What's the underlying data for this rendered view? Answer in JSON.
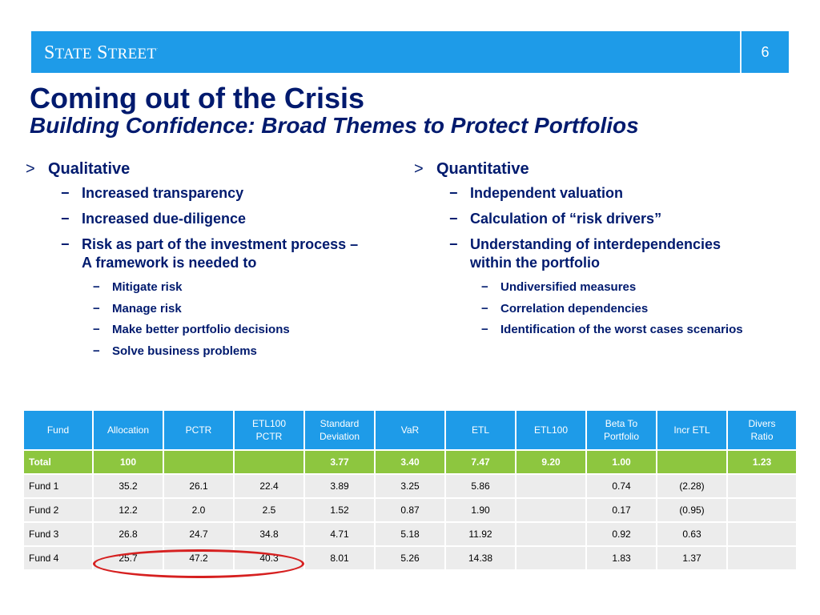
{
  "header": {
    "logo_first": "S",
    "logo_first_rest": "TATE",
    "logo_second": "S",
    "logo_second_rest": "TREET",
    "logo_mark": ".",
    "page_number": "6",
    "accent": "#1e9be8"
  },
  "title": "Coming out of the Crisis",
  "subtitle": "Building Confidence:  Broad Themes to Protect Portfolios",
  "bullet_marker": ">",
  "dash_marker": "−",
  "left": {
    "heading": "Qualitative",
    "items": [
      "Increased transparency",
      "Increased due-diligence",
      "Risk as part of the investment process –",
      "A framework is needed to"
    ],
    "subitems": [
      "Mitigate risk",
      "Manage risk",
      "Make better portfolio decisions",
      "Solve business problems"
    ]
  },
  "right": {
    "heading": "Quantitative",
    "items": [
      "Independent valuation",
      "Calculation of “risk drivers”",
      "Understanding of  interdependencies",
      "within the portfolio"
    ],
    "subitems": [
      "Undiversified measures",
      "Correlation dependencies",
      "Identification of the worst cases scenarios"
    ]
  },
  "table": {
    "headers": [
      "Fund",
      "Allocation",
      "PCTR",
      "ETL100",
      "PCTR",
      "Standard",
      "Deviation",
      "VaR",
      "ETL",
      "ETL100",
      "Beta To",
      "Portfolio",
      "Incr ETL",
      "Divers",
      "Ratio"
    ],
    "total": [
      "Total",
      "100",
      "",
      "",
      "3.77",
      "3.40",
      "7.47",
      "9.20",
      "1.00",
      "",
      "1.23"
    ],
    "rows": [
      [
        "Fund 1",
        "35.2",
        "26.1",
        "22.4",
        "3.89",
        "3.25",
        "5.86",
        "",
        "0.74",
        "(2.28)",
        ""
      ],
      [
        "Fund 2",
        "12.2",
        "2.0",
        "2.5",
        "1.52",
        "0.87",
        "1.90",
        "",
        "0.17",
        "(0.95)",
        ""
      ],
      [
        "Fund 3",
        "26.8",
        "24.7",
        "34.8",
        "4.71",
        "5.18",
        "11.92",
        "",
        "0.92",
        "0.63",
        ""
      ],
      [
        "Fund 4",
        "25.7",
        "47.2",
        "40.3",
        "8.01",
        "5.26",
        "14.38",
        "",
        "1.83",
        "1.37",
        ""
      ]
    ],
    "header_color": "#1e9be8",
    "total_color": "#8dc63f",
    "row_color": "#ececec",
    "highlight_color": "#d62020"
  }
}
